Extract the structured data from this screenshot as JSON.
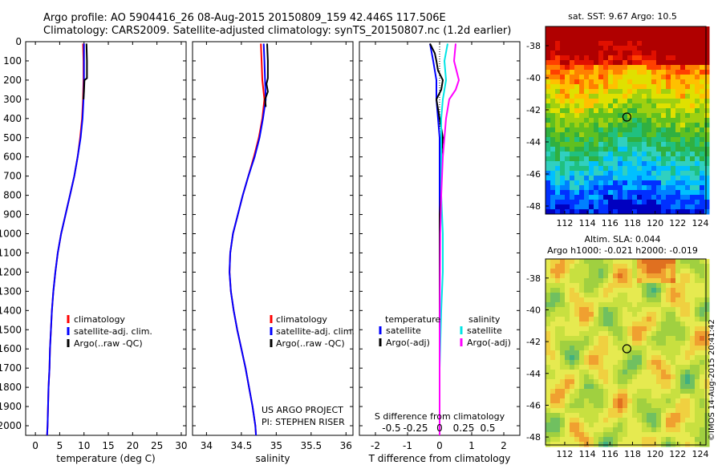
{
  "header": {
    "line1": "Argo profile: AO 5904416_26 08-Aug-2015 20150809_159 42.446S 117.506E",
    "line2": "Climatology: CARS2009. Satellite-adjusted climatology: synTS_20150807.nc (1.2d earlier)"
  },
  "side": {
    "sst_title": "sat. SST: 9.67 Argo: 10.5",
    "sla_title1": "Altim. SLA: 0.044",
    "sla_title2": "Argo h1000: -0.021 h2000: -0.019",
    "stamp": "©IMOS 14-Aug-2015 20:41:42"
  },
  "colors": {
    "climatology": "#ff0000",
    "satellite": "#0000ff",
    "argo": "#000000",
    "sal_satellite": "#00e5e5",
    "sal_argo": "#ff00ff"
  },
  "chart_data": [
    {
      "type": "line",
      "id": "temp",
      "xlabel": "temperature (deg C)",
      "ylabel": "",
      "xlim": [
        -2,
        31
      ],
      "xticks": [
        0,
        5,
        10,
        15,
        20,
        25,
        30
      ],
      "ylim": [
        2050,
        0
      ],
      "yticks": [
        0,
        100,
        200,
        300,
        400,
        500,
        600,
        700,
        800,
        900,
        1000,
        1100,
        1200,
        1300,
        1400,
        1500,
        1600,
        1700,
        1800,
        1900,
        2000
      ],
      "legend": [
        "climatology",
        "satellite-adj. clim.",
        "Argo(..raw -QC)"
      ],
      "series": [
        {
          "name": "climatology",
          "color": "#ff0000",
          "points": [
            [
              9.8,
              10
            ],
            [
              9.9,
              100
            ],
            [
              9.9,
              200
            ],
            [
              9.8,
              300
            ],
            [
              9.6,
              400
            ],
            [
              9.2,
              500
            ],
            [
              8.7,
              600
            ],
            [
              8.0,
              700
            ],
            [
              7.1,
              800
            ],
            [
              6.2,
              900
            ],
            [
              5.3,
              1000
            ],
            [
              4.6,
              1100
            ],
            [
              4.1,
              1200
            ],
            [
              3.7,
              1300
            ],
            [
              3.4,
              1400
            ],
            [
              3.2,
              1500
            ],
            [
              3.0,
              1600
            ],
            [
              2.9,
              1700
            ],
            [
              2.7,
              1800
            ],
            [
              2.6,
              1900
            ],
            [
              2.5,
              2000
            ],
            [
              2.4,
              2050
            ]
          ]
        },
        {
          "name": "satellite-adj. clim.",
          "color": "#0000ff",
          "points": [
            [
              10.0,
              10
            ],
            [
              10.0,
              100
            ],
            [
              10.0,
              200
            ],
            [
              9.9,
              300
            ],
            [
              9.7,
              400
            ],
            [
              9.3,
              500
            ],
            [
              8.7,
              600
            ],
            [
              8.0,
              700
            ],
            [
              7.1,
              800
            ],
            [
              6.2,
              900
            ],
            [
              5.3,
              1000
            ],
            [
              4.6,
              1100
            ],
            [
              4.1,
              1200
            ],
            [
              3.7,
              1300
            ],
            [
              3.4,
              1400
            ],
            [
              3.2,
              1500
            ],
            [
              3.0,
              1600
            ],
            [
              2.9,
              1700
            ],
            [
              2.7,
              1800
            ],
            [
              2.6,
              1900
            ],
            [
              2.5,
              2000
            ],
            [
              2.4,
              2050
            ]
          ]
        },
        {
          "name": "Argo(..raw -QC)",
          "color": "#000000",
          "points": [
            [
              10.5,
              10
            ],
            [
              10.6,
              100
            ],
            [
              10.6,
              190
            ],
            [
              10.1,
              200
            ],
            [
              10.0,
              260
            ],
            [
              9.9,
              300
            ]
          ]
        }
      ]
    },
    {
      "type": "line",
      "id": "sal",
      "xlabel": "salinity",
      "ylabel": "",
      "xlim": [
        33.8,
        36.1
      ],
      "xticks": [
        34,
        34.5,
        35,
        35.5,
        36
      ],
      "ylim": [
        2050,
        0
      ],
      "legend": [
        "climatology",
        "satellite-adj. clim.",
        "Argo(..raw -QC)"
      ],
      "annotations": [
        "US ARGO PROJECT",
        "PI: STEPHEN RISER"
      ],
      "series": [
        {
          "name": "climatology",
          "color": "#ff0000",
          "points": [
            [
              34.78,
              10
            ],
            [
              34.79,
              100
            ],
            [
              34.8,
              200
            ],
            [
              34.83,
              300
            ],
            [
              34.8,
              400
            ],
            [
              34.75,
              500
            ],
            [
              34.68,
              600
            ],
            [
              34.6,
              700
            ],
            [
              34.52,
              800
            ],
            [
              34.45,
              900
            ],
            [
              34.38,
              1000
            ],
            [
              34.34,
              1100
            ],
            [
              34.33,
              1200
            ],
            [
              34.35,
              1300
            ],
            [
              34.39,
              1400
            ],
            [
              34.44,
              1500
            ],
            [
              34.5,
              1600
            ],
            [
              34.56,
              1700
            ],
            [
              34.61,
              1800
            ],
            [
              34.66,
              1900
            ],
            [
              34.7,
              2000
            ],
            [
              34.71,
              2050
            ]
          ]
        },
        {
          "name": "satellite-adj. clim.",
          "color": "#0000ff",
          "points": [
            [
              34.82,
              10
            ],
            [
              34.83,
              100
            ],
            [
              34.84,
              200
            ],
            [
              34.85,
              300
            ],
            [
              34.81,
              400
            ],
            [
              34.76,
              500
            ],
            [
              34.69,
              600
            ],
            [
              34.6,
              700
            ],
            [
              34.52,
              800
            ],
            [
              34.45,
              900
            ],
            [
              34.38,
              1000
            ],
            [
              34.34,
              1100
            ],
            [
              34.33,
              1200
            ],
            [
              34.35,
              1300
            ],
            [
              34.39,
              1400
            ],
            [
              34.44,
              1500
            ],
            [
              34.5,
              1600
            ],
            [
              34.56,
              1700
            ],
            [
              34.61,
              1800
            ],
            [
              34.66,
              1900
            ],
            [
              34.7,
              2000
            ],
            [
              34.71,
              2050
            ]
          ]
        },
        {
          "name": "Argo(..raw -QC)",
          "color": "#000000",
          "points": [
            [
              34.87,
              10
            ],
            [
              34.88,
              100
            ],
            [
              34.88,
              190
            ],
            [
              34.86,
              220
            ],
            [
              34.88,
              260
            ],
            [
              34.84,
              300
            ],
            [
              34.85,
              340
            ]
          ]
        }
      ]
    },
    {
      "type": "line",
      "id": "diff",
      "xlabel": "T difference from climatology",
      "xlim": [
        -2.5,
        2.5
      ],
      "xticks": [
        -2,
        -1,
        0,
        1,
        2
      ],
      "top_label": "S difference from climatology",
      "top_ticks": [
        "-0.5",
        "-0.25",
        "0",
        "0.25",
        "0.5"
      ],
      "ylim": [
        2050,
        0
      ],
      "legend_headers": [
        "temperature",
        "salinity"
      ],
      "legend": [
        "satellite",
        "Argo(-adj)",
        "satellite",
        "Argo(-adj)"
      ],
      "series": [
        {
          "name": "satellite",
          "color": "#0000ff",
          "points": [
            [
              -0.3,
              10
            ],
            [
              -0.2,
              100
            ],
            [
              -0.1,
              200
            ],
            [
              -0.1,
              300
            ],
            [
              -0.05,
              400
            ],
            [
              0,
              500
            ],
            [
              0,
              700
            ],
            [
              0,
              1000
            ],
            [
              0,
              1500
            ],
            [
              0,
              2050
            ]
          ]
        },
        {
          "name": "Argo(-adj)",
          "color": "#000000",
          "points": [
            [
              -0.3,
              10
            ],
            [
              -0.15,
              60
            ],
            [
              -0.1,
              100
            ],
            [
              -0.05,
              150
            ],
            [
              0.1,
              200
            ],
            [
              0.05,
              250
            ],
            [
              -0.1,
              300
            ],
            [
              0,
              400
            ],
            [
              0.1,
              500
            ],
            [
              0.05,
              600
            ],
            [
              0.05,
              800
            ],
            [
              0,
              900
            ],
            [
              0,
              1100
            ],
            [
              0,
              1500
            ],
            [
              0,
              2050
            ]
          ]
        },
        {
          "name": "satellite",
          "color": "#00e5e5",
          "points": [
            [
              0.25,
              10
            ],
            [
              0.15,
              100
            ],
            [
              0.2,
              200
            ],
            [
              0.1,
              300
            ],
            [
              0.05,
              400
            ],
            [
              0.05,
              600
            ],
            [
              0.05,
              800
            ],
            [
              0.1,
              1000
            ],
            [
              0.1,
              1200
            ],
            [
              0.05,
              1400
            ],
            [
              0,
              1700
            ],
            [
              0,
              2050
            ]
          ]
        },
        {
          "name": "Argo(-adj)",
          "color": "#ff00ff",
          "points": [
            [
              0.5,
              10
            ],
            [
              0.45,
              100
            ],
            [
              0.6,
              200
            ],
            [
              0.5,
              250
            ],
            [
              0.3,
              300
            ],
            [
              0.2,
              400
            ],
            [
              0.15,
              500
            ],
            [
              0.1,
              600
            ],
            [
              0.05,
              800
            ],
            [
              0.02,
              1000
            ],
            [
              0,
              1500
            ],
            [
              0,
              2050
            ]
          ]
        }
      ]
    },
    {
      "type": "heatmap",
      "id": "sst_map",
      "title": "sat. SST: 9.67 Argo: 10.5",
      "xlim": [
        110.3,
        124.5
      ],
      "ylim": [
        -48.5,
        -36.8
      ],
      "xticks": [
        112,
        114,
        116,
        118,
        120,
        122,
        124
      ],
      "yticks": [
        -38,
        -40,
        -42,
        -44,
        -46,
        -48
      ],
      "marker": {
        "lon": 117.5,
        "lat": -42.45
      }
    },
    {
      "type": "heatmap",
      "id": "sla_map",
      "title": "Altim. SLA: 0.044",
      "xlim": [
        110.3,
        124.5
      ],
      "ylim": [
        -48.5,
        -36.8
      ],
      "xticks": [
        112,
        114,
        116,
        118,
        120,
        122,
        124
      ],
      "yticks": [
        -38,
        -40,
        -42,
        -44,
        -46,
        -48
      ],
      "marker": {
        "lon": 117.5,
        "lat": -42.45
      }
    }
  ]
}
